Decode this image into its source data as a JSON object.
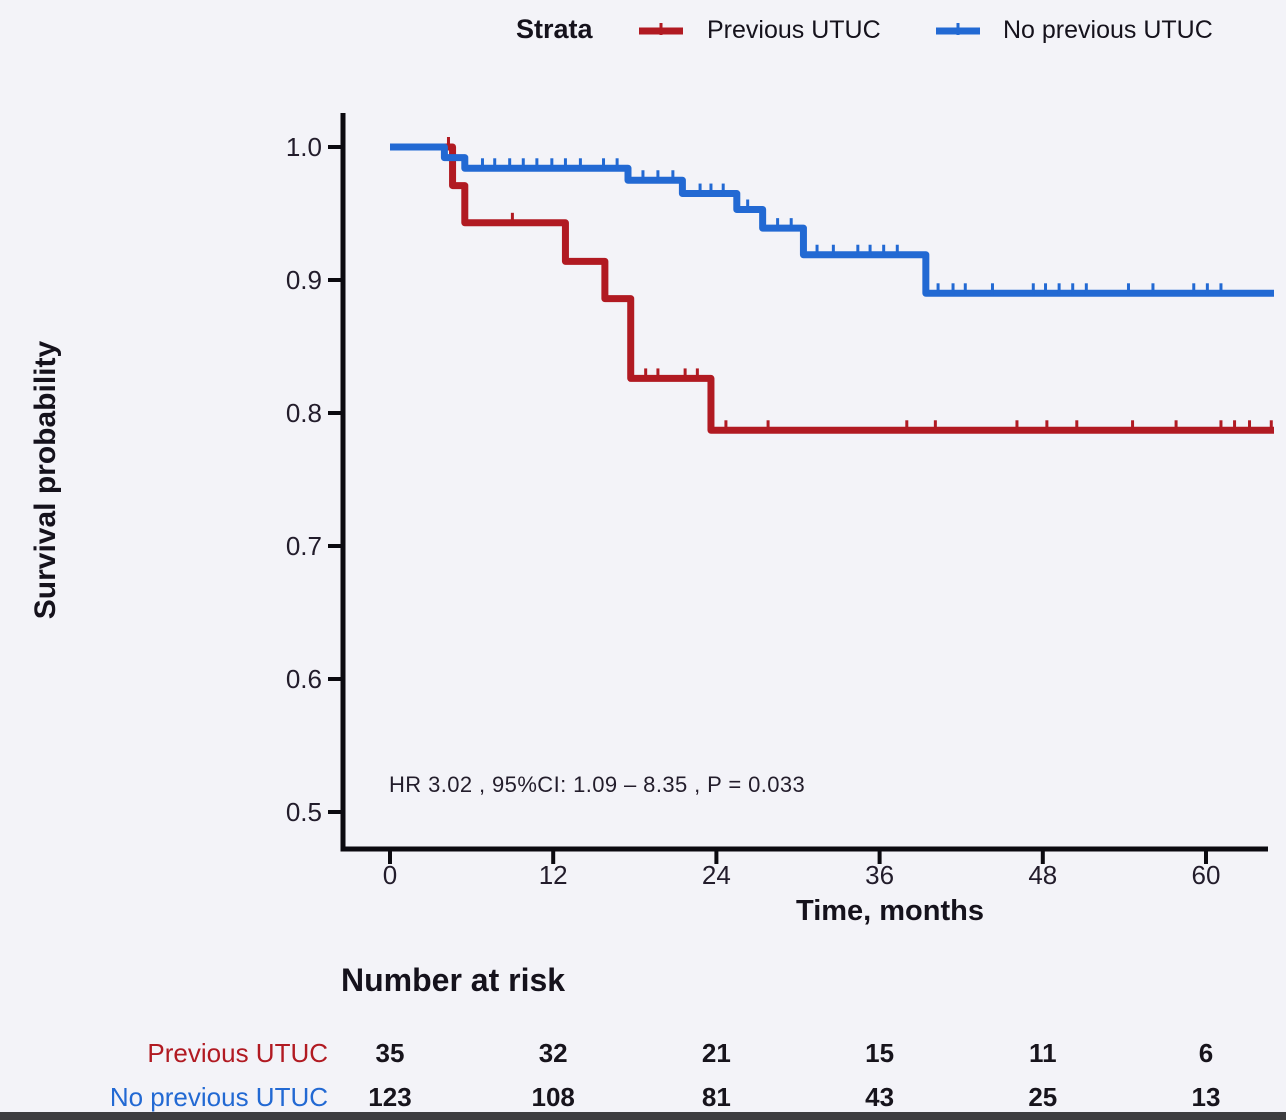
{
  "legend": {
    "title": "Strata",
    "items": [
      {
        "label": "Previous UTUC",
        "color": "#B11A22"
      },
      {
        "label": "No previous UTUC",
        "color": "#2269D3"
      }
    ]
  },
  "chart_data": {
    "type": "line",
    "subtype": "kaplan-meier-step",
    "title": "",
    "xlabel": "Time, months",
    "ylabel": "Survival probability",
    "xlim": [
      0,
      65
    ],
    "ylim": [
      0.48,
      1.0
    ],
    "grid": false,
    "legend_position": "top",
    "x_ticks": [
      0,
      12,
      24,
      36,
      48,
      60
    ],
    "y_ticks": [
      "1.0",
      "0.9",
      "0.8",
      "0.7",
      "0.6",
      "0.5"
    ],
    "annotation": "HR  3.02 , 95%CI:  1.09 – 8.35 ,  P = 0.033",
    "series": [
      {
        "name": "Previous UTUC",
        "color": "#B11A22",
        "steps": [
          [
            0,
            1.0
          ],
          [
            4.6,
            0.971
          ],
          [
            5.5,
            0.943
          ],
          [
            12.9,
            0.914
          ],
          [
            15.8,
            0.886
          ],
          [
            17.7,
            0.826
          ],
          [
            23.6,
            0.787
          ]
        ],
        "end_time": 65,
        "censors": [
          [
            4.3,
            1.0
          ],
          [
            9.0,
            0.943
          ],
          [
            18.8,
            0.826
          ],
          [
            19.7,
            0.826
          ],
          [
            21.7,
            0.826
          ],
          [
            22.6,
            0.826
          ],
          [
            24.7,
            0.787
          ],
          [
            27.8,
            0.787
          ],
          [
            38.0,
            0.787
          ],
          [
            40.1,
            0.787
          ],
          [
            46.1,
            0.787
          ],
          [
            48.3,
            0.787
          ],
          [
            50.5,
            0.787
          ],
          [
            54.6,
            0.787
          ],
          [
            57.8,
            0.787
          ],
          [
            61.1,
            0.787
          ],
          [
            62.1,
            0.787
          ],
          [
            63.2,
            0.787
          ],
          [
            64.8,
            0.787
          ]
        ]
      },
      {
        "name": "No previous UTUC",
        "color": "#2269D3",
        "steps": [
          [
            0,
            1.0
          ],
          [
            4.0,
            0.992
          ],
          [
            5.5,
            0.984
          ],
          [
            17.5,
            0.975
          ],
          [
            21.5,
            0.965
          ],
          [
            25.5,
            0.953
          ],
          [
            27.4,
            0.939
          ],
          [
            30.4,
            0.919
          ],
          [
            39.4,
            0.89
          ]
        ],
        "end_time": 65,
        "censors": [
          [
            6.8,
            0.984
          ],
          [
            7.7,
            0.984
          ],
          [
            8.8,
            0.984
          ],
          [
            9.8,
            0.984
          ],
          [
            10.8,
            0.984
          ],
          [
            11.9,
            0.984
          ],
          [
            12.9,
            0.984
          ],
          [
            14.0,
            0.984
          ],
          [
            15.7,
            0.984
          ],
          [
            16.7,
            0.984
          ],
          [
            18.6,
            0.975
          ],
          [
            19.7,
            0.975
          ],
          [
            20.8,
            0.975
          ],
          [
            22.8,
            0.965
          ],
          [
            23.6,
            0.965
          ],
          [
            24.5,
            0.965
          ],
          [
            26.3,
            0.953
          ],
          [
            28.5,
            0.939
          ],
          [
            29.5,
            0.939
          ],
          [
            31.4,
            0.919
          ],
          [
            32.6,
            0.919
          ],
          [
            34.4,
            0.919
          ],
          [
            35.3,
            0.919
          ],
          [
            36.3,
            0.919
          ],
          [
            37.3,
            0.919
          ],
          [
            40.3,
            0.89
          ],
          [
            41.4,
            0.89
          ],
          [
            42.3,
            0.89
          ],
          [
            44.3,
            0.89
          ],
          [
            47.3,
            0.89
          ],
          [
            48.2,
            0.89
          ],
          [
            49.2,
            0.89
          ],
          [
            50.2,
            0.89
          ],
          [
            51.2,
            0.89
          ],
          [
            54.3,
            0.89
          ],
          [
            56.1,
            0.89
          ],
          [
            59.1,
            0.89
          ],
          [
            60.1,
            0.89
          ],
          [
            61.1,
            0.89
          ]
        ]
      }
    ]
  },
  "risk_table": {
    "title": "Number at risk",
    "time_points": [
      0,
      12,
      24,
      36,
      48,
      60
    ],
    "rows": [
      {
        "label": "Previous UTUC",
        "color": "#B11A22",
        "counts": [
          "35",
          "32",
          "21",
          "15",
          "11",
          "6"
        ]
      },
      {
        "label": "No previous UTUC",
        "color": "#2269D3",
        "counts": [
          "123",
          "108",
          "81",
          "43",
          "25",
          "13"
        ]
      }
    ]
  }
}
